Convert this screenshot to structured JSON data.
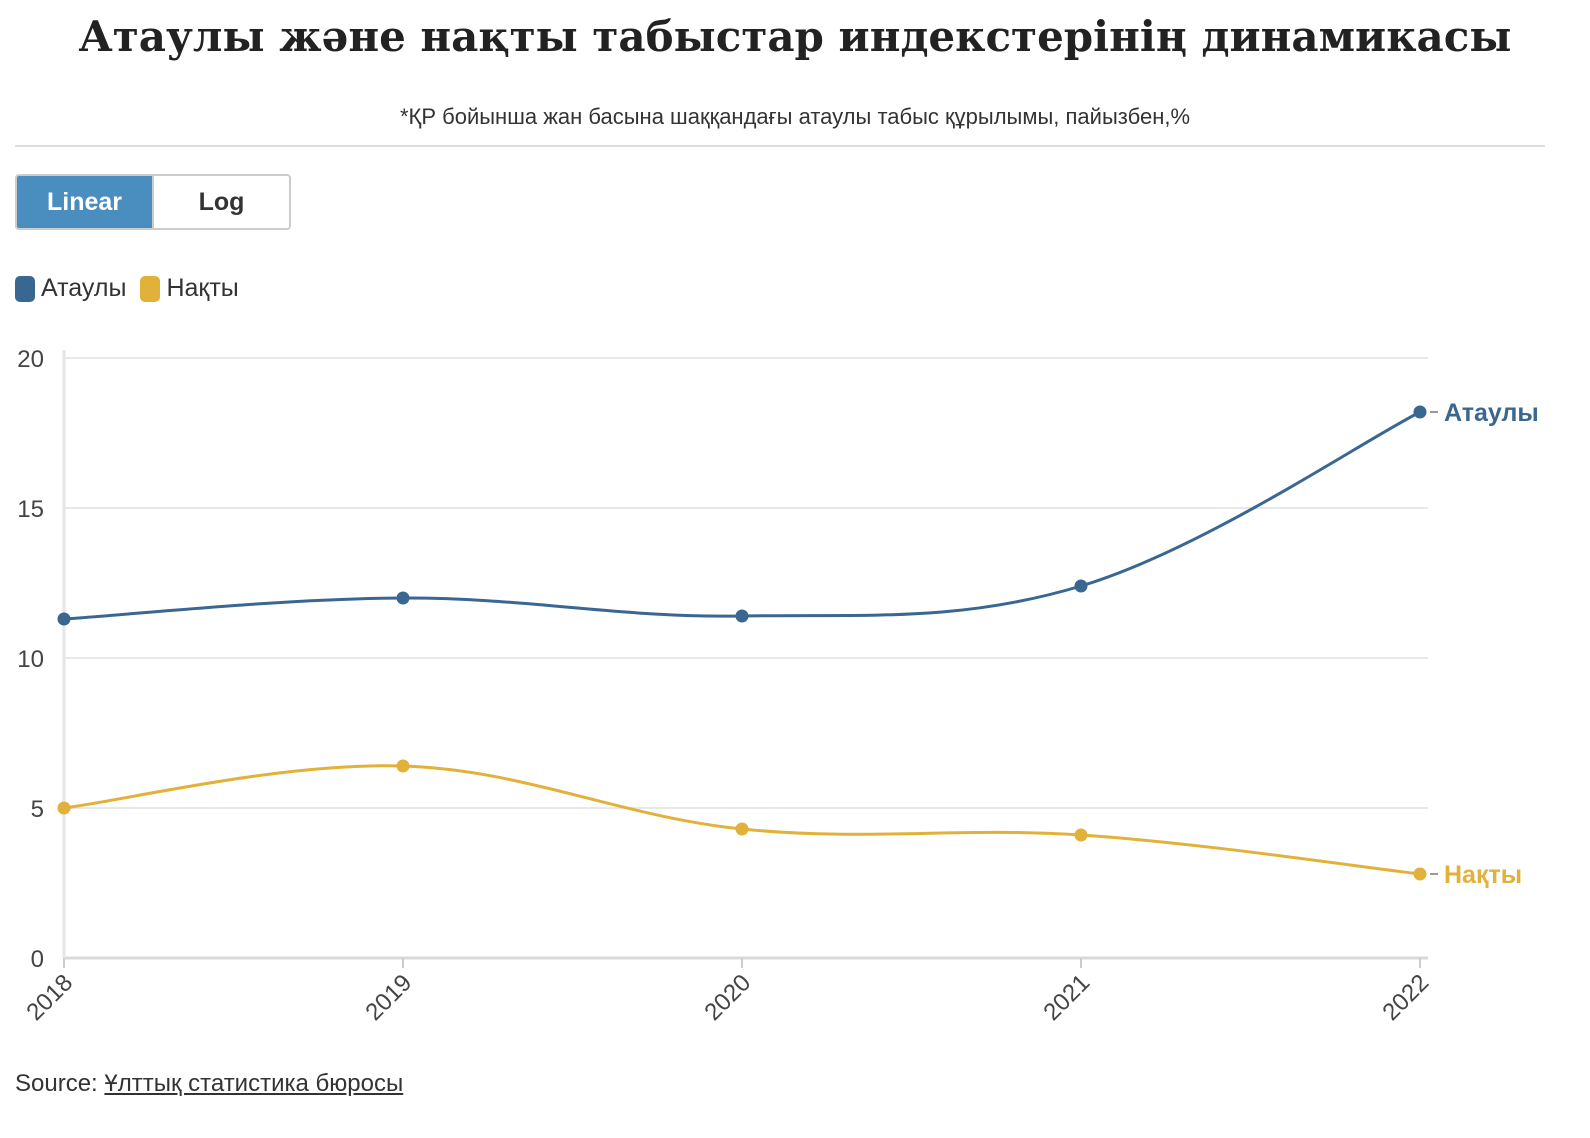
{
  "title": "Атаулы және нақты табыстар индекстерінің динамикасы",
  "subtitle": "*ҚР бойынша жан басына шаққандағы атаулы табыс құрылымы, пайызбен,%",
  "scale_toggle": {
    "linear_label": "Linear",
    "log_label": "Log",
    "selected": "Linear"
  },
  "legend": [
    {
      "label": "Атаулы",
      "color": "#3a6791"
    },
    {
      "label": "Нақты",
      "color": "#e2b139"
    }
  ],
  "chart_data": {
    "type": "line",
    "x": [
      "2018",
      "2019",
      "2020",
      "2021",
      "2022"
    ],
    "series": [
      {
        "name": "Атаулы",
        "color": "#3a6791",
        "values": [
          11.3,
          12.0,
          11.4,
          12.4,
          18.2
        ]
      },
      {
        "name": "Нақты",
        "color": "#e2b139",
        "values": [
          5.0,
          6.4,
          4.3,
          4.1,
          2.8
        ]
      }
    ],
    "ylim": [
      0,
      20
    ],
    "yticks": [
      "0",
      "5",
      "10",
      "15",
      "20"
    ],
    "grid": true,
    "end_labels": true
  },
  "source": {
    "prefix": "Source: ",
    "link_text": "Ұлттық статистика бюросы"
  }
}
